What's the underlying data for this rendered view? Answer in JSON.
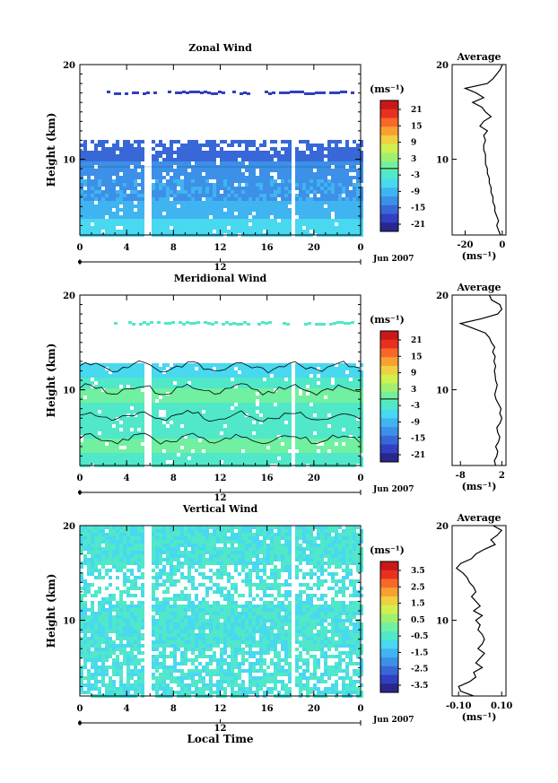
{
  "colorbar_colors": [
    "#28288c",
    "#3040c0",
    "#3868d8",
    "#3c90e8",
    "#40b4f0",
    "#48d8f0",
    "#50e8c8",
    "#70f0a0",
    "#a0f070",
    "#d0f050",
    "#f0d040",
    "#f8a030",
    "#f86828",
    "#e83020",
    "#c81818"
  ],
  "chart_data": [
    {
      "type": "heatmap",
      "title": "Zonal Wind",
      "xlabel": "",
      "ylabel": "Height (km)",
      "x_ticks": [
        "0",
        "4",
        "8",
        "12",
        "16",
        "20",
        "0"
      ],
      "xlim": [
        0,
        24
      ],
      "y_ticks": [
        "20",
        "10"
      ],
      "ylim": [
        2,
        20
      ],
      "date_ticks": [
        "12"
      ],
      "date_label": "Jun 2007",
      "colorbar_unit": "(ms⁻¹)",
      "colorbar_ticks": [
        "21",
        "15",
        "9",
        "3",
        "-3",
        "-9",
        "-15",
        "-21"
      ],
      "colorbar_range": [
        -24,
        24
      ],
      "profile": {
        "title": "Average",
        "xlabel": "(ms⁻¹)",
        "x_ticks": [
          "-20",
          "0"
        ],
        "x_values": [
          -20,
          0
        ],
        "xlim": [
          -27,
          2
        ],
        "y_ticks": [
          "20",
          "10"
        ],
        "height": [
          2,
          2.5,
          3,
          3.5,
          4,
          4.5,
          5,
          5.5,
          6,
          6.5,
          7,
          7.5,
          8,
          8.5,
          9,
          9.5,
          10,
          10.5,
          11,
          11.5,
          12,
          12.5,
          13,
          13.5,
          14,
          14.5,
          15,
          15.5,
          16,
          16.5,
          17,
          17.5,
          18,
          18.5,
          19,
          19.5,
          20
        ],
        "wind": [
          -1,
          -2,
          -3,
          -2,
          -3,
          -4,
          -4,
          -5,
          -5,
          -6,
          -6,
          -7,
          -7,
          -8,
          -8,
          -9,
          -9,
          -9,
          -10,
          -10,
          -9,
          -10,
          -8,
          -12,
          -10,
          -6,
          -9,
          -11,
          -16,
          -10,
          -14,
          -20,
          -8,
          -5,
          -3,
          -1,
          0
        ]
      }
    },
    {
      "type": "heatmap",
      "title": "Meridional Wind",
      "xlabel": "",
      "ylabel": "Height (km)",
      "x_ticks": [
        "0",
        "4",
        "8",
        "12",
        "16",
        "20",
        "0"
      ],
      "xlim": [
        0,
        24
      ],
      "y_ticks": [
        "20",
        "10"
      ],
      "ylim": [
        2,
        20
      ],
      "date_ticks": [
        "12"
      ],
      "date_label": "Jun 2007",
      "colorbar_unit": "(ms⁻¹)",
      "colorbar_ticks": [
        "21",
        "15",
        "9",
        "3",
        "-3",
        "-9",
        "-15",
        "-21"
      ],
      "colorbar_range": [
        -24,
        24
      ],
      "profile": {
        "title": "Average",
        "xlabel": "(ms⁻¹)",
        "x_ticks": [
          "-8",
          "2"
        ],
        "x_values": [
          -8,
          2
        ],
        "xlim": [
          -10,
          3
        ],
        "y_ticks": [
          "20",
          "10"
        ],
        "height": [
          2,
          2.5,
          3,
          3.5,
          4,
          4.5,
          5,
          5.5,
          6,
          6.5,
          7,
          7.5,
          8,
          8.5,
          9,
          9.5,
          10,
          10.5,
          11,
          11.5,
          12,
          12.5,
          13,
          13.5,
          14,
          14.5,
          15,
          15.5,
          16,
          16.5,
          17,
          17.5,
          18,
          18.5,
          19,
          19.5,
          20
        ],
        "wind": [
          0.5,
          0.2,
          0.8,
          1,
          0.5,
          1.2,
          1.5,
          1,
          0.8,
          1.6,
          2,
          1.5,
          1.8,
          1.2,
          0.6,
          0.3,
          0.6,
          0.9,
          0.5,
          0.4,
          0.2,
          0.5,
          0.1,
          0.4,
          -0.2,
          0.3,
          -0.5,
          -1,
          -2,
          -5,
          -8,
          -3,
          1,
          2,
          1.5,
          -0.5,
          -1
        ]
      }
    },
    {
      "type": "heatmap",
      "title": "Vertical Wind",
      "xlabel": "Local Time",
      "ylabel": "Height (km)",
      "x_ticks": [
        "0",
        "4",
        "8",
        "12",
        "16",
        "20",
        "0"
      ],
      "xlim": [
        0,
        24
      ],
      "y_ticks": [
        "20",
        "10"
      ],
      "ylim": [
        2,
        20
      ],
      "date_ticks": [
        "12"
      ],
      "date_label": "Jun 2007",
      "colorbar_unit": "(ms⁻¹)",
      "colorbar_ticks": [
        "3.5",
        "2.5",
        "1.5",
        "0.5",
        "-0.5",
        "-1.5",
        "-2.5",
        "-3.5"
      ],
      "colorbar_range": [
        -4,
        4
      ],
      "profile": {
        "title": "Average",
        "xlabel": "(ms⁻¹)",
        "x_ticks": [
          "-0.10",
          "0.10"
        ],
        "x_values": [
          -0.1,
          0.1
        ],
        "xlim": [
          -0.13,
          0.12
        ],
        "y_ticks": [
          "20",
          "10"
        ],
        "height": [
          2,
          2.5,
          3,
          3.5,
          4,
          4.5,
          5,
          5.5,
          6,
          6.5,
          7,
          7.5,
          8,
          8.5,
          9,
          9.5,
          10,
          10.5,
          11,
          11.5,
          12,
          12.5,
          13,
          13.5,
          14,
          14.5,
          15,
          15.5,
          16,
          16.5,
          17,
          17.5,
          18,
          18.5,
          19,
          19.5,
          20
        ],
        "wind": [
          -0.03,
          -0.09,
          -0.1,
          -0.05,
          -0.02,
          -0.03,
          0.01,
          -0.02,
          0.0,
          0.02,
          -0.01,
          0.01,
          0.02,
          0.01,
          -0.01,
          0.0,
          -0.02,
          0.01,
          -0.03,
          0.0,
          -0.02,
          -0.04,
          -0.02,
          -0.03,
          -0.05,
          -0.06,
          -0.08,
          -0.11,
          -0.09,
          -0.04,
          -0.02,
          0.02,
          0.07,
          0.05,
          0.08,
          0.1,
          0.06
        ]
      }
    }
  ]
}
